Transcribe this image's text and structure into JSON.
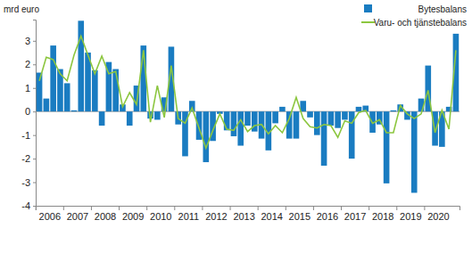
{
  "chart_data": {
    "type": "bar",
    "y_label": "mrd euro",
    "categories": [
      "2006",
      null,
      null,
      null,
      "2007",
      null,
      null,
      null,
      "2008",
      null,
      null,
      null,
      "2009",
      null,
      null,
      null,
      "2010",
      null,
      null,
      null,
      "2011",
      null,
      null,
      null,
      "2012",
      null,
      null,
      null,
      "2013",
      null,
      null,
      null,
      "2014",
      null,
      null,
      null,
      "2015",
      null,
      null,
      null,
      "2016",
      null,
      null,
      null,
      "2017",
      null,
      null,
      null,
      "2018",
      null,
      null,
      null,
      "2019",
      null,
      null,
      null,
      "2020",
      null,
      null,
      null,
      null
    ],
    "series": [
      {
        "name": "Bytesbalans",
        "type": "bar",
        "color": "#1a7cc1",
        "values": [
          1.65,
          0.55,
          2.8,
          1.8,
          1.2,
          0.05,
          3.85,
          2.5,
          1.75,
          -0.6,
          2.1,
          1.8,
          0.3,
          -0.6,
          1.1,
          2.8,
          -0.3,
          -0.35,
          0.6,
          2.75,
          -0.55,
          -1.9,
          0.45,
          -1.2,
          -2.15,
          -1.25,
          -0.1,
          -0.8,
          -1.05,
          -1.45,
          -0.6,
          -0.85,
          -1.15,
          -1.65,
          -0.5,
          0.2,
          -1.15,
          -1.15,
          0.45,
          -0.25,
          -1.0,
          -2.3,
          -0.6,
          -0.7,
          -0.35,
          -2.0,
          0.2,
          0.25,
          -0.9,
          -0.55,
          -3.05,
          0.05,
          0.3,
          -0.35,
          -3.45,
          0.55,
          1.95,
          -1.45,
          -1.5,
          0.2,
          3.3
        ]
      },
      {
        "name": "Varu- och tjänstebalans",
        "type": "line",
        "color": "#8cc63f",
        "values": [
          1.3,
          2.3,
          2.2,
          1.6,
          1.3,
          2.4,
          3.2,
          2.4,
          1.6,
          2.35,
          1.6,
          1.7,
          0.2,
          0.8,
          0.3,
          2.6,
          -0.45,
          1.1,
          -0.25,
          1.95,
          -0.3,
          -0.5,
          0.15,
          -0.7,
          -1.55,
          -0.8,
          -0.1,
          -0.75,
          -0.8,
          -0.35,
          -0.85,
          -0.6,
          -0.55,
          -0.95,
          -0.6,
          -0.9,
          -0.3,
          0.6,
          -0.3,
          -0.65,
          -0.7,
          -0.55,
          -0.6,
          -1.1,
          -0.4,
          -0.5,
          -0.05,
          0.05,
          -0.5,
          -0.35,
          -0.9,
          -0.9,
          0.25,
          -0.1,
          -0.3,
          -0.1,
          0.9,
          -0.9,
          0.05,
          -0.75,
          2.6
        ]
      }
    ],
    "ylim": [
      -4,
      3.9
    ],
    "yticks": [
      -4,
      -3,
      -2,
      -1,
      0,
      1,
      2,
      3
    ],
    "grid": false,
    "legend": "top-right"
  }
}
